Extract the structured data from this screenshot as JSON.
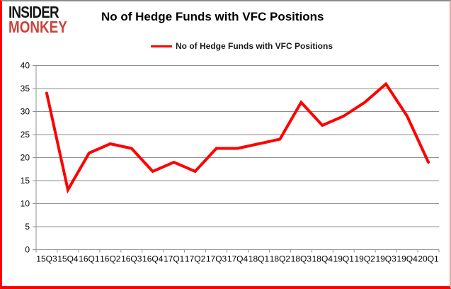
{
  "logo": {
    "line1": "INSIDER",
    "line2": "MONKEY",
    "line1_color": "#161616",
    "line2_color": "#c8453a"
  },
  "title": "No of Hedge Funds with VFC Positions",
  "legend": {
    "label": "No of Hedge Funds with VFC Positions",
    "line_color": "#fe0000"
  },
  "chart_data": {
    "type": "line",
    "title": "No of Hedge Funds with VFC Positions",
    "categories": [
      "15Q3",
      "15Q4",
      "16Q1",
      "16Q2",
      "16Q3",
      "16Q4",
      "17Q1",
      "17Q2",
      "17Q3",
      "17Q4",
      "18Q1",
      "18Q2",
      "18Q3",
      "18Q4",
      "19Q1",
      "19Q2",
      "19Q3",
      "19Q4",
      "20Q1"
    ],
    "series": [
      {
        "name": "No of Hedge Funds with VFC Positions",
        "color": "#fe0000",
        "values": [
          34,
          13,
          21,
          23,
          22,
          17,
          19,
          17,
          22,
          22,
          23,
          24,
          32,
          27,
          29,
          32,
          36,
          29,
          19
        ]
      }
    ],
    "xlabel": "",
    "ylabel": "",
    "ylim": [
      0,
      40
    ],
    "yticks": [
      0,
      5,
      10,
      15,
      20,
      25,
      30,
      35,
      40
    ],
    "grid": true,
    "gridline_color": "#8f8f8f",
    "legend_position": "top-center"
  }
}
